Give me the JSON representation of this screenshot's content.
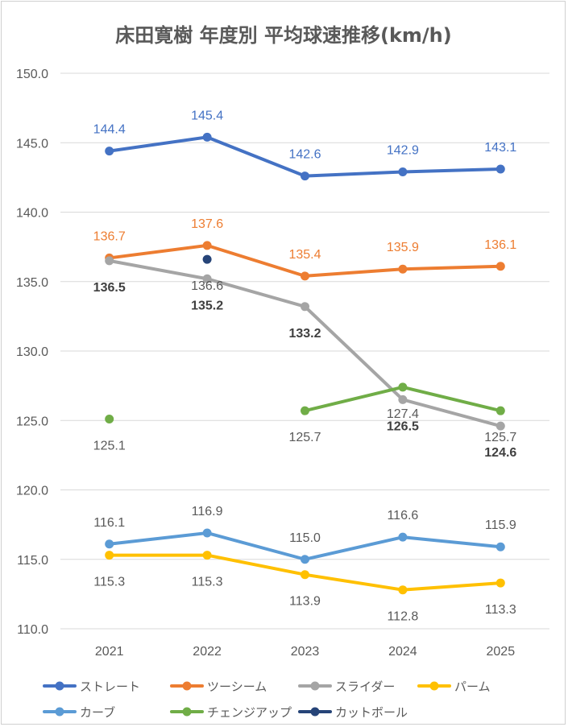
{
  "chart_data": {
    "type": "line",
    "title": "床田寛樹 年度別 平均球速推移(km/h)",
    "categories": [
      "2021",
      "2022",
      "2023",
      "2024",
      "2025"
    ],
    "ylim": [
      110,
      150
    ],
    "yticks": [
      "110.0",
      "115.0",
      "120.0",
      "125.0",
      "130.0",
      "135.0",
      "140.0",
      "145.0",
      "150.0"
    ],
    "grid": true,
    "legend_position": "bottom",
    "series": [
      {
        "name": "ストレート",
        "color": "#4472C4",
        "values": [
          144.4,
          145.4,
          142.6,
          142.9,
          143.1
        ],
        "labels": [
          "144.4",
          "145.4",
          "142.6",
          "142.9",
          "143.1"
        ],
        "label_pos": "above",
        "label_color": "#4472C4",
        "bold": false
      },
      {
        "name": "ツーシーム",
        "color": "#ED7D31",
        "values": [
          136.7,
          137.6,
          135.4,
          135.9,
          136.1
        ],
        "labels": [
          "136.7",
          "137.6",
          "135.4",
          "135.9",
          "136.1"
        ],
        "label_pos": "above",
        "label_color": "#ED7D31",
        "bold": false
      },
      {
        "name": "スライダー",
        "color": "#A5A5A5",
        "values": [
          136.5,
          135.2,
          133.2,
          126.5,
          124.6
        ],
        "labels": [
          "136.5",
          "135.2",
          "133.2",
          "126.5",
          "124.6"
        ],
        "label_pos": "below",
        "label_color": "#404040",
        "bold": true
      },
      {
        "name": "パーム",
        "color": "#FFC000",
        "values": [
          115.3,
          115.3,
          113.9,
          112.8,
          113.3
        ],
        "labels": [
          "115.3",
          "115.3",
          "113.9",
          "112.8",
          "113.3"
        ],
        "label_pos": "below",
        "label_color": "#595959",
        "bold": false
      },
      {
        "name": "カーブ",
        "color": "#5B9BD5",
        "values": [
          116.1,
          116.9,
          115.0,
          116.6,
          115.9
        ],
        "labels": [
          "116.1",
          "116.9",
          "115.0",
          "116.6",
          "115.9"
        ],
        "label_pos": "above",
        "label_color": "#595959",
        "bold": false
      },
      {
        "name": "チェンジアップ",
        "color": "#70AD47",
        "values": [
          125.1,
          null,
          125.7,
          127.4,
          125.7
        ],
        "labels": [
          "125.1",
          "",
          "125.7",
          "127.4",
          "125.7"
        ],
        "label_pos": "below",
        "label_color": "#595959",
        "bold": false
      },
      {
        "name": "カットボール",
        "color": "#264478",
        "values": [
          null,
          136.6,
          null,
          null,
          null
        ],
        "labels": [
          "",
          "136.6",
          "",
          "",
          ""
        ],
        "label_pos": "below",
        "label_color": "#595959",
        "bold": false
      }
    ]
  }
}
